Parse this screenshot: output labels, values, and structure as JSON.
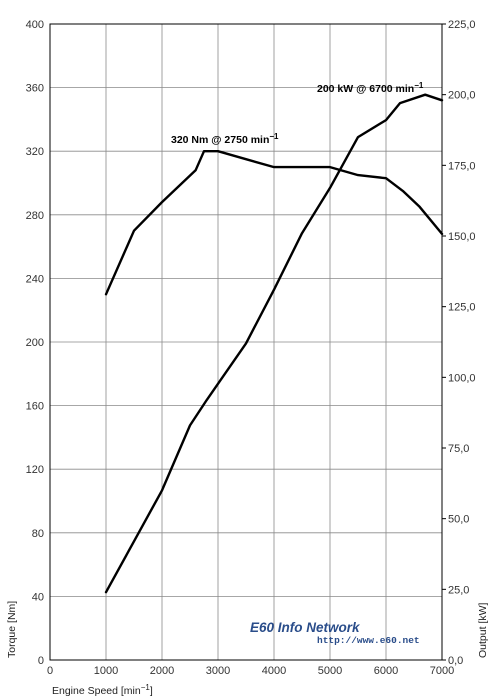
{
  "chart_data": {
    "type": "line",
    "xlabel": "Engine Speed [min",
    "xlabel_sup": "−1",
    "xlabel_end": "]",
    "ylabel_left": "Torque [Nm]",
    "ylabel_right": "Output [kW]",
    "xlim": [
      0,
      7000
    ],
    "ylim_left": [
      0,
      400
    ],
    "ylim_right": [
      0,
      225
    ],
    "x_ticks": [
      "0",
      "1000",
      "2000",
      "3000",
      "4000",
      "5000",
      "6000",
      "7000"
    ],
    "y_left_ticks": [
      "0",
      "40",
      "80",
      "120",
      "160",
      "200",
      "240",
      "280",
      "320",
      "360",
      "400"
    ],
    "y_right_ticks": [
      "0,0",
      "25,0",
      "50,0",
      "75,0",
      "100,0",
      "125,0",
      "150,0",
      "175,0",
      "200,0",
      "225,0"
    ],
    "grid": true,
    "series": [
      {
        "axis": "left",
        "x": [
          1000,
          1500,
          2000,
          2600,
          2750,
          3000,
          3500,
          4000,
          4500,
          5000,
          5500,
          6000,
          6300,
          6600,
          7000
        ],
        "y": [
          230,
          270,
          288,
          308,
          320,
          320,
          315,
          310,
          310,
          310,
          305,
          303,
          295,
          285,
          268
        ]
      },
      {
        "axis": "right",
        "x": [
          1000,
          1500,
          2000,
          2500,
          2800,
          3500,
          4000,
          4500,
          5000,
          5500,
          6000,
          6250,
          6700,
          7000
        ],
        "y": [
          24,
          42,
          60,
          83,
          92,
          112,
          131,
          151,
          167,
          185,
          191,
          197,
          200,
          198
        ]
      }
    ],
    "annotations": [
      {
        "text": "320 Nm @ 2750 min",
        "sup": "−1",
        "at": [
          3000,
          320
        ],
        "axis": "left"
      },
      {
        "text": "200 kW @ 6700  min",
        "sup": "−1",
        "at": [
          5600,
          205
        ],
        "axis": "right"
      }
    ]
  },
  "watermark": {
    "line1": "E60 Info Network",
    "line2": "http://www.e60.net",
    "color": "#2a4d8a"
  }
}
